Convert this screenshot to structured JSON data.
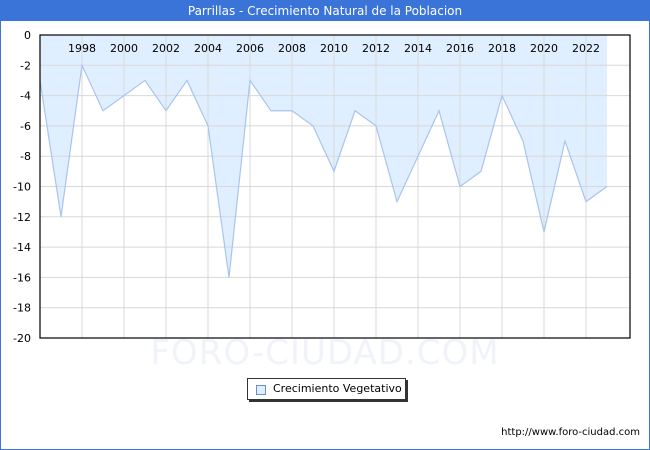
{
  "title": "Parrillas - Crecimiento Natural de la Poblacion",
  "legend": {
    "label": "Crecimiento Vegetativo"
  },
  "footer": {
    "url": "http://www.foro-ciudad.com"
  },
  "watermark": "FORO-CIUDAD.COM",
  "colors": {
    "header": "#3a74d8",
    "fill": "#e0efff",
    "line": "#a8c4ee",
    "grid": "#d8d8d8"
  },
  "chart_data": {
    "type": "area",
    "title": "Parrillas - Crecimiento Natural de la Poblacion",
    "xlabel": "",
    "ylabel": "",
    "ylim": [
      -20,
      0
    ],
    "yticks": [
      0,
      -2,
      -4,
      -6,
      -8,
      -10,
      -12,
      -14,
      -16,
      -18,
      -20
    ],
    "xtick_labels": [
      "1998",
      "2000",
      "2002",
      "2004",
      "2006",
      "2008",
      "2010",
      "2012",
      "2014",
      "2016",
      "2018",
      "2020",
      "2022"
    ],
    "grid": true,
    "legend_position": "bottom",
    "x": [
      1996,
      1997,
      1998,
      1999,
      2000,
      2001,
      2002,
      2003,
      2004,
      2005,
      2006,
      2007,
      2008,
      2009,
      2010,
      2011,
      2012,
      2013,
      2014,
      2015,
      2016,
      2017,
      2018,
      2019,
      2020,
      2021,
      2022,
      2023
    ],
    "series": [
      {
        "name": "Crecimiento Vegetativo",
        "values": [
          -3,
          -12,
          -2,
          -5,
          -4,
          -3,
          -5,
          -3,
          -6,
          -16,
          -3,
          -5,
          -5,
          -6,
          -9,
          -5,
          -6,
          -11,
          -8,
          -5,
          -10,
          -9,
          -4,
          -7,
          -13,
          -7,
          -11,
          -10
        ]
      }
    ]
  }
}
